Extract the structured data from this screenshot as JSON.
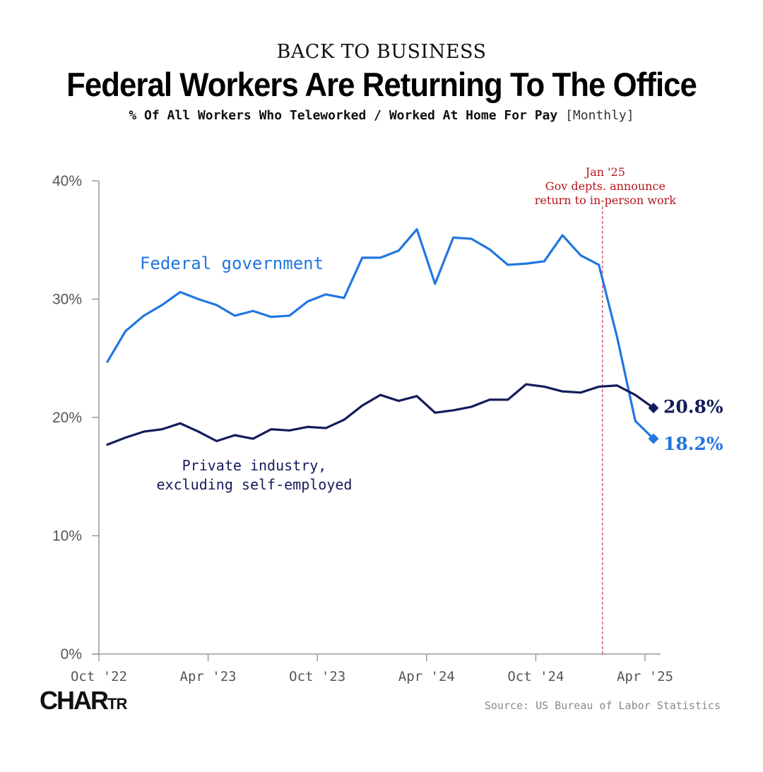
{
  "header": {
    "kicker": "BACK TO BUSINESS",
    "title": "Federal Workers Are Returning To The Office",
    "subtitle": "% Of All Workers Who Teleworked / Worked At Home For Pay",
    "frequency": "[Monthly]"
  },
  "footer": {
    "logo_main": "CHAR",
    "logo_small": "TR",
    "source": "Source: US Bureau of Labor Statistics"
  },
  "colors": {
    "federal": "#2176e0",
    "private": "#131c5a",
    "annotation": "#b5141c",
    "axis": "#9a9a9a",
    "tick_label": "#555555"
  },
  "chart_data": {
    "type": "line",
    "title": "Federal Workers Are Returning To The Office",
    "xlabel": "",
    "ylabel": "% Of All Workers Who Teleworked / Worked At Home For Pay",
    "ylim": [
      0,
      40
    ],
    "yticks": [
      0,
      10,
      20,
      30,
      40
    ],
    "ytick_labels": [
      "0%",
      "10%",
      "20%",
      "30%",
      "40%"
    ],
    "xticks": [
      0,
      6,
      12,
      18,
      24,
      30
    ],
    "xtick_labels": [
      "Oct '22",
      "Apr '23",
      "Oct '23",
      "Apr '24",
      "Oct '24",
      "Apr '25"
    ],
    "x": [
      "Oct '22",
      "Nov '22",
      "Dec '22",
      "Jan '23",
      "Feb '23",
      "Mar '23",
      "Apr '23",
      "May '23",
      "Jun '23",
      "Jul '23",
      "Aug '23",
      "Sep '23",
      "Oct '23",
      "Nov '23",
      "Dec '23",
      "Jan '24",
      "Feb '24",
      "Mar '24",
      "Apr '24",
      "May '24",
      "Jun '24",
      "Jul '24",
      "Aug '24",
      "Sep '24",
      "Oct '24",
      "Nov '24",
      "Dec '24",
      "Jan '25",
      "Feb '25",
      "Mar '25",
      "Apr '25"
    ],
    "series": [
      {
        "name": "Federal government",
        "label_lines": [
          "Federal government"
        ],
        "end_label": "18.2%",
        "values": [
          24.7,
          27.3,
          28.6,
          29.5,
          30.6,
          30.0,
          29.5,
          28.6,
          29.0,
          28.5,
          28.6,
          29.8,
          30.4,
          30.1,
          33.5,
          33.5,
          34.1,
          35.9,
          31.3,
          35.2,
          35.1,
          34.2,
          32.9,
          33.0,
          33.2,
          35.4,
          33.7,
          32.9,
          26.8,
          19.7,
          18.2
        ]
      },
      {
        "name": "Private industry, excluding self-employed",
        "label_lines": [
          "Private industry,",
          "excluding self-employed"
        ],
        "end_label": "20.8%",
        "values": [
          17.7,
          18.3,
          18.8,
          19.0,
          19.5,
          18.8,
          18.0,
          18.5,
          18.2,
          19.0,
          18.9,
          19.2,
          19.1,
          19.8,
          21.0,
          21.9,
          21.4,
          21.8,
          20.4,
          20.6,
          20.9,
          21.5,
          21.5,
          22.8,
          22.6,
          22.2,
          22.1,
          22.6,
          22.7,
          21.9,
          20.8
        ]
      }
    ],
    "annotation": {
      "x_index": 27.2,
      "lines": [
        "Jan '25",
        "Gov depts. announce",
        "return to in-person work"
      ]
    }
  }
}
